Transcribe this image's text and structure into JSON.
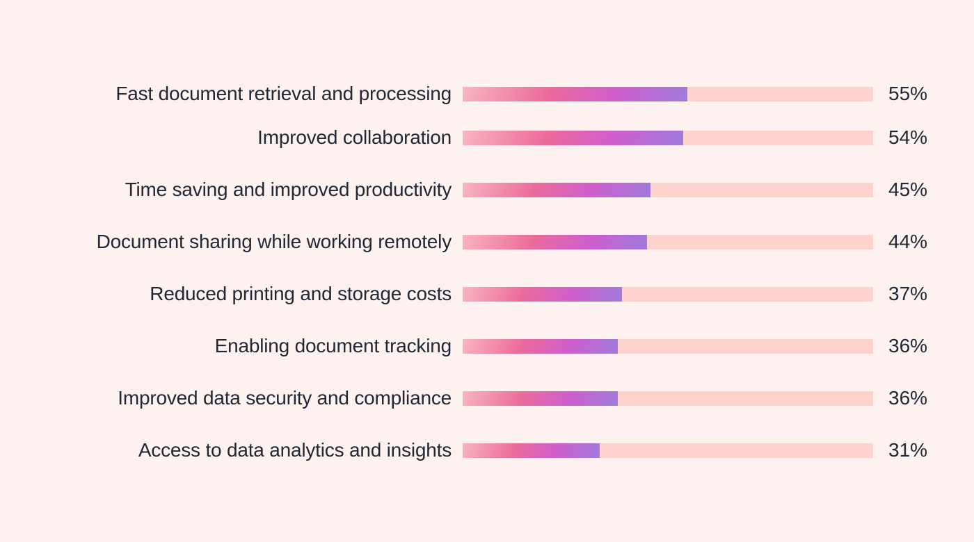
{
  "chart_data": {
    "type": "bar",
    "orientation": "horizontal",
    "title": "",
    "xlabel": "",
    "ylabel": "",
    "unit": "%",
    "xlim": [
      0,
      100
    ],
    "grid": false,
    "legend": false,
    "categories": [
      "Fast document retrieval and processing",
      "Improved collaboration",
      "Time saving and improved productivity",
      "Document sharing while working remotely",
      "Reduced printing and storage costs",
      "Enabling document tracking",
      "Improved data security and compliance",
      "Access to data analytics and insights"
    ],
    "values": [
      55,
      54,
      45,
      44,
      37,
      36,
      36,
      31
    ],
    "value_labels": [
      "55%",
      "54%",
      "45%",
      "44%",
      "37%",
      "36%",
      "36%",
      "31%"
    ],
    "colors": {
      "background": "#fdf2ef",
      "track": "#fdd2cc",
      "fill_gradient": [
        "#f9b6c0",
        "#ec6b9b",
        "#cf5ecd",
        "#9d7bdc"
      ],
      "text": "#212735"
    }
  }
}
